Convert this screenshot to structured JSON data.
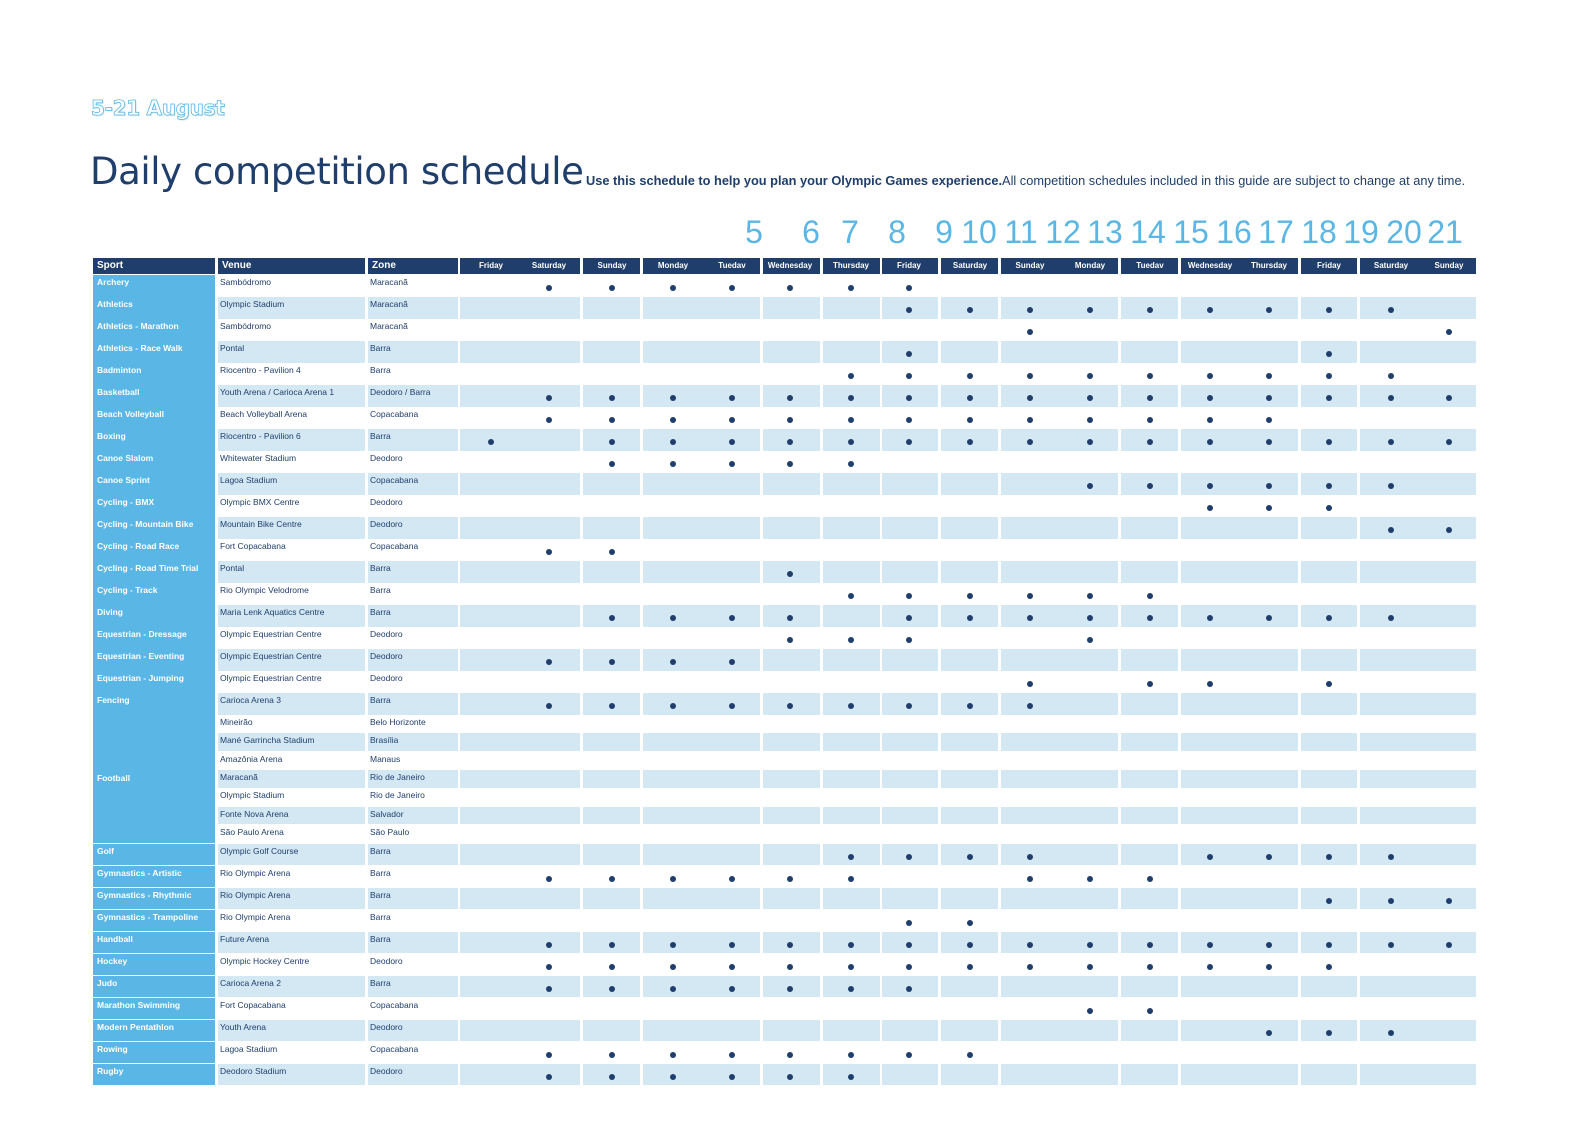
{
  "header": {
    "dates": "5-21 August",
    "title": "Daily competition schedule",
    "subtitle_bold": "Use this schedule to help you plan your Olympic Games experience.",
    "subtitle_rest": "All competition schedules included in this guide are subject to change at any time."
  },
  "day_numbers": [
    "5",
    "6",
    "7",
    "8",
    "9",
    "10",
    "11",
    "12",
    "13",
    "14",
    "15",
    "16",
    "17",
    "18",
    "19",
    "20",
    "21"
  ],
  "columns": {
    "sport": "Sport",
    "venue": "Venue",
    "zone": "Zone",
    "weekdays": [
      "Friday",
      "Saturday",
      "Sunday",
      "Monday",
      "Tuedav",
      "Wednesday",
      "Thursday",
      "Friday",
      "Saturday",
      "Sunday",
      "Monday",
      "Tuedav",
      "Wednesday",
      "Thursday",
      "Friday",
      "Saturday",
      "Sunday"
    ]
  },
  "rows": [
    {
      "sport": "Archery",
      "venue": "Sambódromo",
      "zone": "Maracanã",
      "days": [
        2,
        3,
        4,
        5,
        6,
        7,
        8
      ]
    },
    {
      "sport": "Athletics",
      "venue": "Olympic Stadium",
      "zone": "Maracanã",
      "days": [
        8,
        9,
        10,
        11,
        12,
        13,
        14,
        15,
        16
      ]
    },
    {
      "sport": "Athletics - Marathon",
      "venue": "Sambódromo",
      "zone": "Maracanã",
      "days": [
        10,
        17
      ]
    },
    {
      "sport": "Athletics - Race Walk",
      "venue": "Pontal",
      "zone": "Barra",
      "days": [
        8,
        15
      ]
    },
    {
      "sport": "Badminton",
      "venue": "Riocentro - Pavilion 4",
      "zone": "Barra",
      "days": [
        7,
        8,
        9,
        10,
        11,
        12,
        13,
        14,
        15,
        16
      ]
    },
    {
      "sport": "Basketball",
      "venue": "Youth Arena / Carioca Arena 1",
      "zone": "Deodoro / Barra",
      "days": [
        2,
        3,
        4,
        5,
        6,
        7,
        8,
        9,
        10,
        11,
        12,
        13,
        14,
        15,
        16,
        17
      ]
    },
    {
      "sport": "Beach Volleyball",
      "venue": "Beach Volleyball Arena",
      "zone": "Copacabana",
      "days": [
        2,
        3,
        4,
        5,
        6,
        7,
        8,
        9,
        10,
        11,
        12,
        13,
        14
      ]
    },
    {
      "sport": "Boxing",
      "venue": "Riocentro - Pavilion 6",
      "zone": "Barra",
      "days": [
        1,
        3,
        4,
        5,
        6,
        7,
        8,
        9,
        10,
        11,
        12,
        13,
        14,
        15,
        16,
        17
      ]
    },
    {
      "sport": "Canoe Slalom",
      "venue": "Whitewater Stadium",
      "zone": "Deodoro",
      "days": [
        3,
        4,
        5,
        6,
        7
      ]
    },
    {
      "sport": "Canoe Sprint",
      "venue": "Lagoa Stadium",
      "zone": "Copacabana",
      "days": [
        11,
        12,
        13,
        14,
        15,
        16
      ]
    },
    {
      "sport": "Cycling - BMX",
      "venue": "Olympic BMX Centre",
      "zone": "Deodoro",
      "days": [
        13,
        14,
        15
      ]
    },
    {
      "sport": "Cycling - Mountain Bike",
      "venue": "Mountain Bike Centre",
      "zone": "Deodoro",
      "days": [
        16,
        17
      ]
    },
    {
      "sport": "Cycling - Road Race",
      "venue": "Fort Copacabana",
      "zone": "Copacabana",
      "days": [
        2,
        3
      ]
    },
    {
      "sport": "Cycling - Road Time Trial",
      "venue": "Pontal",
      "zone": "Barra",
      "days": [
        6
      ]
    },
    {
      "sport": "Cycling - Track",
      "venue": "Rio Olympic Velodrome",
      "zone": "Barra",
      "days": [
        7,
        8,
        9,
        10,
        11,
        12
      ]
    },
    {
      "sport": "Diving",
      "venue": "Maria Lenk Aquatics Centre",
      "zone": "Barra",
      "days": [
        3,
        4,
        5,
        6,
        8,
        9,
        10,
        11,
        12,
        13,
        14,
        15,
        16
      ]
    },
    {
      "sport": "Equestrian - Dressage",
      "venue": "Olympic Equestrian Centre",
      "zone": "Deodoro",
      "days": [
        6,
        7,
        8,
        11
      ]
    },
    {
      "sport": "Equestrian - Eventing",
      "venue": "Olympic Equestrian Centre",
      "zone": "Deodoro",
      "days": [
        2,
        3,
        4,
        5
      ]
    },
    {
      "sport": "Equestrian - Jumping",
      "venue": "Olympic Equestrian Centre",
      "zone": "Deodoro",
      "days": [
        10,
        12,
        13,
        15
      ]
    },
    {
      "sport": "Fencing",
      "venue": "Carioca Arena 3",
      "zone": "Barra",
      "days": [
        2,
        3,
        4,
        5,
        6,
        7,
        8,
        9,
        10
      ]
    },
    {
      "sport": "Football",
      "venues": [
        {
          "venue": "Mineirão",
          "zone": "Belo Horizonte"
        },
        {
          "venue": "Mané Garrincha Stadium",
          "zone": "Brasília"
        },
        {
          "venue": "Amazônia Arena",
          "zone": "Manaus"
        },
        {
          "venue": "Maracanã",
          "zone": "Rio de Janeiro"
        },
        {
          "venue": "Olympic Stadium",
          "zone": "Rio de Janeiro"
        },
        {
          "venue": "Fonte Nova Arena",
          "zone": "Salvador"
        },
        {
          "venue": "São Paulo Arena",
          "zone": "São Paulo"
        }
      ],
      "days": []
    },
    {
      "sport": "Golf",
      "venue": "Olympic Golf Course",
      "zone": "Barra",
      "days": [
        7,
        8,
        9,
        10,
        13,
        14,
        15,
        16
      ]
    },
    {
      "sport": "Gymnastics - Artistic",
      "venue": "Rio Olympic Arena",
      "zone": "Barra",
      "days": [
        2,
        3,
        4,
        5,
        6,
        7,
        10,
        11,
        12
      ]
    },
    {
      "sport": "Gymnastics - Rhythmic",
      "venue": "Rio Olympic Arena",
      "zone": "Barra",
      "days": [
        15,
        16,
        17
      ]
    },
    {
      "sport": "Gymnastics - Trampoline",
      "venue": "Rio Olympic Arena",
      "zone": "Barra",
      "days": [
        8,
        9
      ]
    },
    {
      "sport": "Handball",
      "venue": "Future Arena",
      "zone": "Barra",
      "days": [
        2,
        3,
        4,
        5,
        6,
        7,
        8,
        9,
        10,
        11,
        12,
        13,
        14,
        15,
        16,
        17
      ]
    },
    {
      "sport": "Hockey",
      "venue": "Olympic Hockey Centre",
      "zone": "Deodoro",
      "days": [
        2,
        3,
        4,
        5,
        6,
        7,
        8,
        9,
        10,
        11,
        12,
        13,
        14,
        15
      ]
    },
    {
      "sport": "Judo",
      "venue": "Carioca Arena 2",
      "zone": "Barra",
      "days": [
        2,
        3,
        4,
        5,
        6,
        7,
        8
      ]
    },
    {
      "sport": "Marathon Swimming",
      "venue": "Fort Copacabana",
      "zone": "Copacabana",
      "days": [
        11,
        12
      ]
    },
    {
      "sport": "Modern Pentathlon",
      "venue": "Youth Arena",
      "zone": "Deodoro",
      "days": [
        14,
        15,
        16
      ]
    },
    {
      "sport": "Rowing",
      "venue": "Lagoa Stadium",
      "zone": "Copacabana",
      "days": [
        2,
        3,
        4,
        5,
        6,
        7,
        8,
        9
      ]
    },
    {
      "sport": "Rugby",
      "venue": "Deodoro Stadium",
      "zone": "Deodoro",
      "days": [
        2,
        3,
        4,
        5,
        6,
        7
      ]
    }
  ],
  "colors": {
    "navy": "#1f3e6b",
    "sky": "#5ab6e4",
    "shade": "#d4e8f4"
  }
}
